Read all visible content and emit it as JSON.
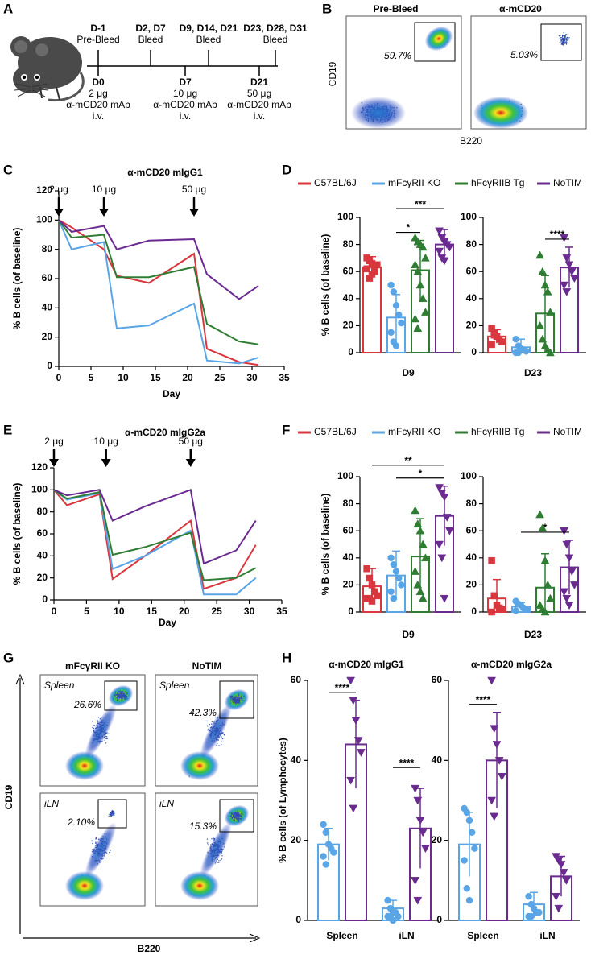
{
  "panel_labels": [
    "A",
    "B",
    "C",
    "D",
    "E",
    "F",
    "G",
    "H"
  ],
  "schematic": {
    "top": [
      {
        "day": "D-1",
        "event": "Pre-Bleed"
      },
      {
        "day": "D2, D7",
        "event": "Bleed"
      },
      {
        "day": "D9, D14, D21",
        "event": "Bleed"
      },
      {
        "day": "D23, D28, D31",
        "event": "Bleed"
      }
    ],
    "bottom": [
      {
        "day": "D0",
        "dose": "2 μg",
        "drug": "α-mCD20 mAb",
        "route": "i.v."
      },
      {
        "day": "D7",
        "dose": "10 μg",
        "drug": "α-mCD20 mAb",
        "route": "i.v."
      },
      {
        "day": "D21",
        "dose": "50 μg",
        "drug": "α-mCD20 mAb",
        "route": "i.v."
      }
    ]
  },
  "flow_b": {
    "titles": [
      "Pre-Bleed",
      "α-mCD20"
    ],
    "gates": [
      "59.7%",
      "5.03%"
    ],
    "ylabel": "CD19",
    "xlabel": "B220"
  },
  "flow_g": {
    "columns": [
      "mFcγRII KO",
      "NoTIM"
    ],
    "plots": [
      {
        "tissue": "Spleen",
        "gate": "26.6%"
      },
      {
        "tissue": "Spleen",
        "gate": "42.3%"
      },
      {
        "tissue": "iLN",
        "gate": "2.10%"
      },
      {
        "tissue": "iLN",
        "gate": "15.3%"
      }
    ],
    "ylabel": "CD19",
    "xlabel": "B220"
  },
  "chart_data": [
    {
      "type": "line",
      "title": "α-mCD20 mIgG1",
      "xlabel": "Day",
      "ylabel": "% B cells (of baseline)",
      "x": [
        0,
        2,
        7,
        9,
        14,
        21,
        23,
        28,
        31
      ],
      "series": [
        {
          "color": "#d9363e",
          "values": [
            100,
            95,
            80,
            62,
            57,
            77,
            12,
            3,
            1
          ]
        },
        {
          "color": "#5aa5e6",
          "values": [
            100,
            80,
            85,
            26,
            28,
            43,
            4,
            2,
            6
          ]
        },
        {
          "color": "#2f7d32",
          "values": [
            100,
            88,
            90,
            61,
            61,
            68,
            29,
            17,
            15
          ]
        },
        {
          "color": "#6a2a8f",
          "values": [
            100,
            92,
            96,
            80,
            86,
            87,
            63,
            46,
            55
          ]
        }
      ],
      "xlim": [
        0,
        35
      ],
      "ylim": [
        0,
        120
      ],
      "xticks": [
        0,
        5,
        10,
        15,
        20,
        25,
        30,
        35
      ],
      "yticks": [
        0,
        20,
        40,
        60,
        80,
        100,
        120
      ],
      "annotations": [
        {
          "x": 0,
          "label": "2 μg"
        },
        {
          "x": 7,
          "label": "10 μg"
        },
        {
          "x": 21,
          "label": "50 μg"
        }
      ]
    },
    {
      "type": "bar",
      "xlabel": "D9",
      "ylabel": "% B cells (of baseline)",
      "ylim": [
        0,
        100
      ],
      "yticks": [
        0,
        20,
        40,
        60,
        80,
        100
      ],
      "series": [
        {
          "name": "C57BL/6J",
          "color": "#d9363e",
          "marker": "square",
          "values": [
            63
          ],
          "errors": [
            8
          ],
          "points": [
            [
              62,
              68,
              58,
              60,
              65,
              70,
              55,
              66
            ]
          ]
        },
        {
          "name": "mFcγRII KO",
          "color": "#5aa5e6",
          "marker": "circle",
          "values": [
            26
          ],
          "errors": [
            17
          ],
          "points": [
            [
              50,
              45,
              35,
              28,
              22,
              15,
              8,
              5
            ]
          ]
        },
        {
          "name": "hFcγRIIB Tg",
          "color": "#2f7d32",
          "marker": "triangle-up",
          "values": [
            61
          ],
          "errors": [
            22
          ],
          "points": [
            [
              85,
              82,
              80,
              78,
              70,
              65,
              60,
              50,
              40,
              30,
              25,
              18
            ]
          ]
        },
        {
          "name": "NoTIM",
          "color": "#6a2a8f",
          "marker": "triangle-down",
          "values": [
            80
          ],
          "errors": [
            11
          ],
          "points": [
            [
              90,
              85,
              82,
              80,
              78,
              75,
              70,
              68
            ]
          ]
        }
      ],
      "brackets": [
        {
          "series": [
            1,
            2
          ],
          "category": 0,
          "label": "*"
        },
        {
          "series": [
            1,
            3
          ],
          "category": 0,
          "label": "***"
        }
      ]
    },
    {
      "type": "bar",
      "xlabel": "D23",
      "ylim": [
        0,
        100
      ],
      "yticks": [
        0,
        20,
        40,
        60,
        80,
        100
      ],
      "series": [
        {
          "color": "#d9363e",
          "marker": "square",
          "values": [
            12
          ],
          "errors": [
            5
          ],
          "points": [
            [
              18,
              15,
              12,
              10,
              8,
              6,
              13
            ]
          ]
        },
        {
          "color": "#5aa5e6",
          "marker": "circle",
          "values": [
            4
          ],
          "errors": [
            6
          ],
          "points": [
            [
              10,
              5,
              3,
              2,
              1,
              0,
              0,
              2
            ]
          ]
        },
        {
          "color": "#2f7d32",
          "marker": "triangle-up",
          "values": [
            29
          ],
          "errors": [
            28
          ],
          "points": [
            [
              72,
              60,
              50,
              45,
              30,
              20,
              10,
              5,
              2,
              0
            ]
          ]
        },
        {
          "color": "#6a2a8f",
          "marker": "triangle-down",
          "values": [
            63
          ],
          "errors": [
            15
          ],
          "points": [
            [
              85,
              70,
              65,
              60,
              55,
              50,
              45
            ]
          ]
        }
      ],
      "brackets": [
        {
          "series": [
            2,
            3
          ],
          "category": 0,
          "label": "****"
        }
      ]
    },
    {
      "type": "line",
      "title": "α-mCD20 mIgG2a",
      "xlabel": "Day",
      "ylabel": "% B cells (of baseline)",
      "x": [
        0,
        2,
        7,
        9,
        14,
        21,
        23,
        28,
        31
      ],
      "series": [
        {
          "color": "#d9363e",
          "values": [
            100,
            86,
            96,
            19,
            40,
            72,
            10,
            20,
            50
          ]
        },
        {
          "color": "#5aa5e6",
          "values": [
            100,
            91,
            97,
            28,
            40,
            63,
            5,
            5,
            20
          ]
        },
        {
          "color": "#2f7d32",
          "values": [
            100,
            92,
            98,
            41,
            48,
            61,
            18,
            20,
            29
          ]
        },
        {
          "color": "#6a2a8f",
          "values": [
            100,
            95,
            100,
            72,
            85,
            100,
            33,
            45,
            72
          ]
        }
      ],
      "xlim": [
        0,
        35
      ],
      "ylim": [
        0,
        120
      ],
      "xticks": [
        0,
        5,
        10,
        15,
        20,
        25,
        30,
        35
      ],
      "yticks": [
        0,
        20,
        40,
        60,
        80,
        100,
        120
      ],
      "annotations": [
        {
          "x": 0,
          "label": "2 μg"
        },
        {
          "x": 8,
          "label": "10 μg"
        },
        {
          "x": 21,
          "label": "50 μg"
        }
      ]
    },
    {
      "type": "bar",
      "xlabel": "D9",
      "ylabel": "% B cells (of baseline)",
      "ylim": [
        0,
        100
      ],
      "yticks": [
        0,
        20,
        40,
        60,
        80,
        100
      ],
      "series": [
        {
          "name": "C57BL/6J",
          "color": "#d9363e",
          "marker": "square",
          "values": [
            19
          ],
          "errors": [
            13
          ],
          "points": [
            [
              32,
              25,
              20,
              15,
              12,
              10,
              10,
              8
            ]
          ]
        },
        {
          "name": "mFcγRII KO",
          "color": "#5aa5e6",
          "marker": "circle",
          "values": [
            27
          ],
          "errors": [
            18
          ],
          "points": [
            [
              40,
              35,
              30,
              25,
              20,
              15,
              10
            ]
          ]
        },
        {
          "name": "hFcγRIIB Tg",
          "color": "#2f7d32",
          "marker": "triangle-up",
          "values": [
            41
          ],
          "errors": [
            28
          ],
          "points": [
            [
              75,
              65,
              60,
              50,
              40,
              30,
              20,
              15,
              10
            ]
          ]
        },
        {
          "name": "NoTIM",
          "color": "#6a2a8f",
          "marker": "triangle-down",
          "values": [
            71
          ],
          "errors": [
            22
          ],
          "points": [
            [
              92,
              88,
              85,
              70,
              60,
              50,
              40,
              10
            ]
          ]
        }
      ],
      "brackets": [
        {
          "series": [
            1,
            3
          ],
          "category": 0,
          "label": "*"
        },
        {
          "series": [
            0,
            3
          ],
          "category": 0,
          "label": "**"
        }
      ]
    },
    {
      "type": "bar",
      "xlabel": "D23",
      "ylim": [
        0,
        100
      ],
      "yticks": [
        0,
        20,
        40,
        60,
        80,
        100
      ],
      "series": [
        {
          "color": "#d9363e",
          "marker": "square",
          "values": [
            10
          ],
          "errors": [
            14
          ],
          "points": [
            [
              38,
              12,
              5,
              3,
              2,
              0
            ]
          ]
        },
        {
          "color": "#5aa5e6",
          "marker": "circle",
          "values": [
            4
          ],
          "errors": [
            3
          ],
          "points": [
            [
              8,
              6,
              5,
              3,
              2,
              1
            ]
          ]
        },
        {
          "color": "#2f7d32",
          "marker": "triangle-up",
          "values": [
            18
          ],
          "errors": [
            25
          ],
          "points": [
            [
              72,
              62,
              38,
              20,
              10,
              5,
              2,
              0
            ]
          ]
        },
        {
          "color": "#6a2a8f",
          "marker": "triangle-down",
          "values": [
            33
          ],
          "errors": [
            20
          ],
          "points": [
            [
              60,
              50,
              40,
              30,
              20,
              15,
              10,
              5
            ]
          ]
        }
      ],
      "brackets": [
        {
          "series": [
            1,
            3
          ],
          "category": 0,
          "label": "*"
        }
      ]
    },
    {
      "type": "bar",
      "title": "α-mCD20 mIgG1",
      "ylabel": "% B cells (of Lymphocytes)",
      "categories": [
        "Spleen",
        "iLN"
      ],
      "ylim": [
        0,
        60
      ],
      "yticks": [
        0,
        20,
        40,
        60
      ],
      "series": [
        {
          "color": "#5aa5e6",
          "marker": "circle",
          "values": [
            19,
            3
          ],
          "errors": [
            4,
            2
          ],
          "points": [
            [
              24,
              22,
              19,
              18,
              17,
              16,
              14
            ],
            [
              5,
              3,
              2,
              2,
              1,
              1,
              1,
              0
            ]
          ]
        },
        {
          "color": "#6a2a8f",
          "marker": "triangle-down",
          "values": [
            44,
            23
          ],
          "errors": [
            11,
            10
          ],
          "points": [
            [
              60,
              55,
              50,
              45,
              42,
              35,
              28
            ],
            [
              33,
              30,
              25,
              22,
              18,
              10,
              5
            ]
          ]
        }
      ],
      "brackets": [
        {
          "series": [
            0,
            1
          ],
          "category": 0,
          "label": "****"
        },
        {
          "series": [
            0,
            1
          ],
          "category": 1,
          "label": "****"
        }
      ]
    },
    {
      "type": "bar",
      "title": "α-mCD20 mIgG2a",
      "categories": [
        "Spleen",
        "iLN"
      ],
      "ylim": [
        0,
        60
      ],
      "yticks": [
        0,
        20,
        40,
        60
      ],
      "series": [
        {
          "color": "#5aa5e6",
          "marker": "circle",
          "values": [
            19,
            4
          ],
          "errors": [
            8,
            3
          ],
          "points": [
            [
              28,
              27,
              25,
              22,
              18,
              15,
              8,
              5
            ],
            [
              6,
              4,
              3,
              2,
              2,
              1,
              1
            ]
          ]
        },
        {
          "color": "#6a2a8f",
          "marker": "triangle-down",
          "values": [
            40,
            11
          ],
          "errors": [
            12,
            5
          ],
          "points": [
            [
              60,
              48,
              44,
              40,
              36,
              30,
              26
            ],
            [
              16,
              15,
              14,
              12,
              10,
              6,
              3
            ]
          ]
        }
      ],
      "brackets": [
        {
          "series": [
            0,
            1
          ],
          "category": 0,
          "label": "****"
        }
      ]
    }
  ]
}
